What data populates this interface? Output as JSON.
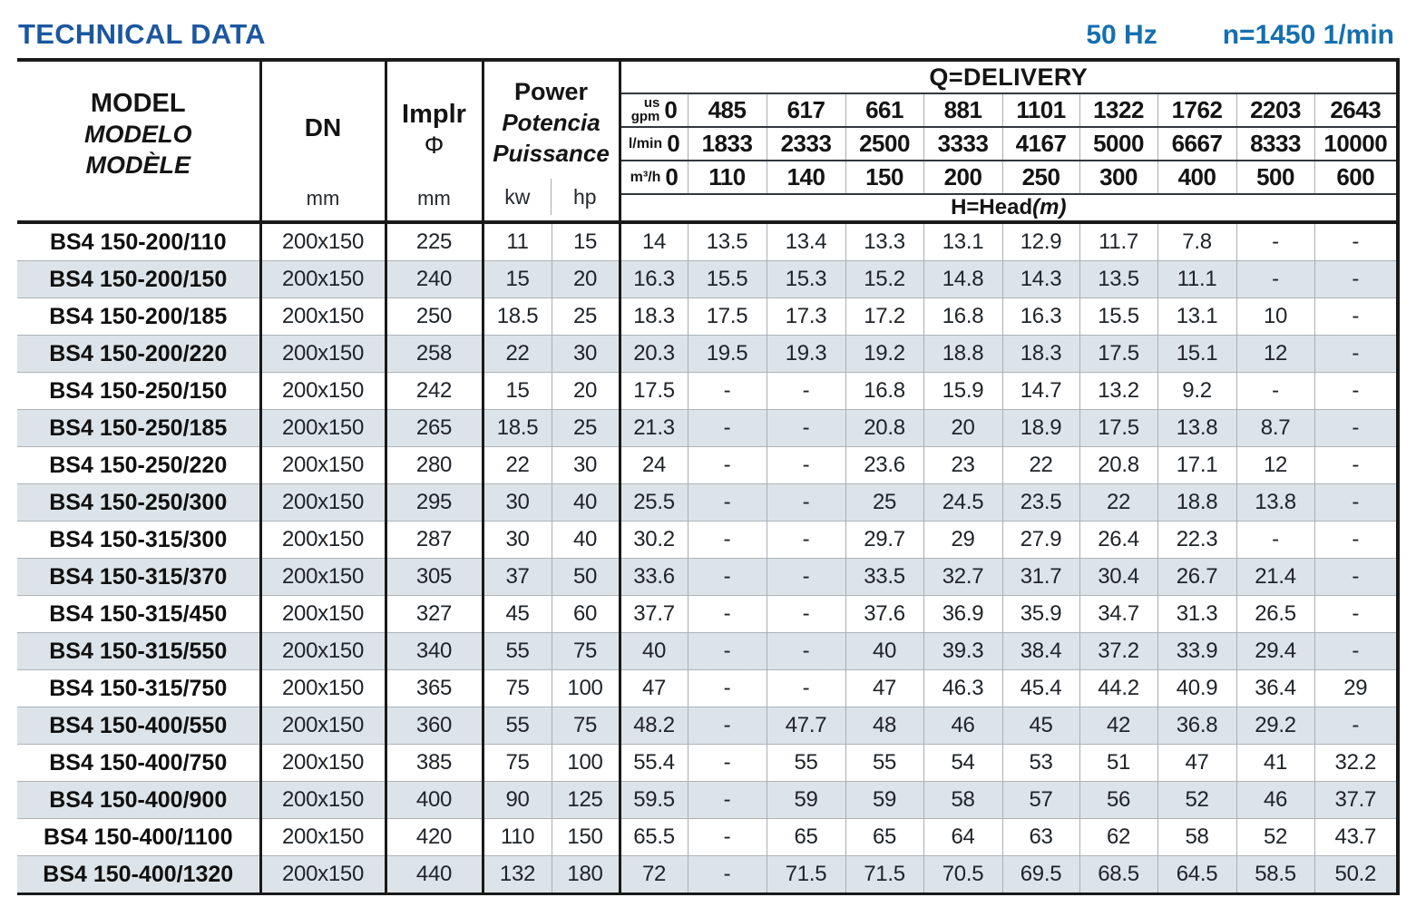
{
  "page": {
    "title": "TECHNICAL DATA",
    "frequency": "50 Hz",
    "speed": "n=1450 1/min"
  },
  "colors": {
    "title_blue": "#1c57a0",
    "spec_blue": "#1470b0",
    "row_stripe": "#dde4e9",
    "border_dark": "#1a1a1a",
    "grid_gray": "#a7aeb5"
  },
  "table": {
    "model_header": {
      "en": "MODEL",
      "es": "MODELO",
      "fr": "MODÈLE"
    },
    "dn_header": {
      "label": "DN",
      "unit": "mm"
    },
    "impeller_header": {
      "label": "Implr",
      "symbol": "Φ",
      "unit": "mm"
    },
    "power_header": {
      "en": "Power",
      "es": "Potencia",
      "fr": "Puissance",
      "unit_kw": "kw",
      "unit_hp": "hp"
    },
    "delivery_header": {
      "title": "Q=DELIVERY",
      "head_label": "H=Head",
      "head_unit": "(m)",
      "unit_rows": [
        {
          "key": "us-gpm",
          "label_lines": [
            "us",
            "gpm"
          ],
          "values": [
            "0",
            "485",
            "617",
            "661",
            "881",
            "1101",
            "1322",
            "1762",
            "2203",
            "2643"
          ]
        },
        {
          "key": "l-min",
          "label_lines": [
            "l/min"
          ],
          "values": [
            "0",
            "1833",
            "2333",
            "2500",
            "3333",
            "4167",
            "5000",
            "6667",
            "8333",
            "10000"
          ]
        },
        {
          "key": "m3-h",
          "label_lines": [
            "m³/h"
          ],
          "values": [
            "0",
            "110",
            "140",
            "150",
            "200",
            "250",
            "300",
            "400",
            "500",
            "600"
          ]
        }
      ]
    },
    "rows": [
      {
        "model": "BS4 150-200/110",
        "dn": "200x150",
        "impeller": "225",
        "kw": "11",
        "hp": "15",
        "head": [
          "14",
          "13.5",
          "13.4",
          "13.3",
          "13.1",
          "12.9",
          "11.7",
          "7.8",
          "-",
          "-"
        ]
      },
      {
        "model": "BS4 150-200/150",
        "dn": "200x150",
        "impeller": "240",
        "kw": "15",
        "hp": "20",
        "head": [
          "16.3",
          "15.5",
          "15.3",
          "15.2",
          "14.8",
          "14.3",
          "13.5",
          "11.1",
          "-",
          "-"
        ]
      },
      {
        "model": "BS4 150-200/185",
        "dn": "200x150",
        "impeller": "250",
        "kw": "18.5",
        "hp": "25",
        "head": [
          "18.3",
          "17.5",
          "17.3",
          "17.2",
          "16.8",
          "16.3",
          "15.5",
          "13.1",
          "10",
          "-"
        ]
      },
      {
        "model": "BS4 150-200/220",
        "dn": "200x150",
        "impeller": "258",
        "kw": "22",
        "hp": "30",
        "head": [
          "20.3",
          "19.5",
          "19.3",
          "19.2",
          "18.8",
          "18.3",
          "17.5",
          "15.1",
          "12",
          "-"
        ]
      },
      {
        "model": "BS4 150-250/150",
        "dn": "200x150",
        "impeller": "242",
        "kw": "15",
        "hp": "20",
        "head": [
          "17.5",
          "-",
          "-",
          "16.8",
          "15.9",
          "14.7",
          "13.2",
          "9.2",
          "-",
          "-"
        ]
      },
      {
        "model": "BS4 150-250/185",
        "dn": "200x150",
        "impeller": "265",
        "kw": "18.5",
        "hp": "25",
        "head": [
          "21.3",
          "-",
          "-",
          "20.8",
          "20",
          "18.9",
          "17.5",
          "13.8",
          "8.7",
          "-"
        ]
      },
      {
        "model": "BS4 150-250/220",
        "dn": "200x150",
        "impeller": "280",
        "kw": "22",
        "hp": "30",
        "head": [
          "24",
          "-",
          "-",
          "23.6",
          "23",
          "22",
          "20.8",
          "17.1",
          "12",
          "-"
        ]
      },
      {
        "model": "BS4 150-250/300",
        "dn": "200x150",
        "impeller": "295",
        "kw": "30",
        "hp": "40",
        "head": [
          "25.5",
          "-",
          "-",
          "25",
          "24.5",
          "23.5",
          "22",
          "18.8",
          "13.8",
          "-"
        ]
      },
      {
        "model": "BS4 150-315/300",
        "dn": "200x150",
        "impeller": "287",
        "kw": "30",
        "hp": "40",
        "head": [
          "30.2",
          "-",
          "-",
          "29.7",
          "29",
          "27.9",
          "26.4",
          "22.3",
          "-",
          "-"
        ]
      },
      {
        "model": "BS4 150-315/370",
        "dn": "200x150",
        "impeller": "305",
        "kw": "37",
        "hp": "50",
        "head": [
          "33.6",
          "-",
          "-",
          "33.5",
          "32.7",
          "31.7",
          "30.4",
          "26.7",
          "21.4",
          "-"
        ]
      },
      {
        "model": "BS4 150-315/450",
        "dn": "200x150",
        "impeller": "327",
        "kw": "45",
        "hp": "60",
        "head": [
          "37.7",
          "-",
          "-",
          "37.6",
          "36.9",
          "35.9",
          "34.7",
          "31.3",
          "26.5",
          "-"
        ]
      },
      {
        "model": "BS4 150-315/550",
        "dn": "200x150",
        "impeller": "340",
        "kw": "55",
        "hp": "75",
        "head": [
          "40",
          "-",
          "-",
          "40",
          "39.3",
          "38.4",
          "37.2",
          "33.9",
          "29.4",
          "-"
        ]
      },
      {
        "model": "BS4 150-315/750",
        "dn": "200x150",
        "impeller": "365",
        "kw": "75",
        "hp": "100",
        "head": [
          "47",
          "-",
          "-",
          "47",
          "46.3",
          "45.4",
          "44.2",
          "40.9",
          "36.4",
          "29"
        ]
      },
      {
        "model": "BS4 150-400/550",
        "dn": "200x150",
        "impeller": "360",
        "kw": "55",
        "hp": "75",
        "head": [
          "48.2",
          "-",
          "47.7",
          "48",
          "46",
          "45",
          "42",
          "36.8",
          "29.2",
          "-"
        ]
      },
      {
        "model": "BS4 150-400/750",
        "dn": "200x150",
        "impeller": "385",
        "kw": "75",
        "hp": "100",
        "head": [
          "55.4",
          "-",
          "55",
          "55",
          "54",
          "53",
          "51",
          "47",
          "41",
          "32.2"
        ]
      },
      {
        "model": "BS4 150-400/900",
        "dn": "200x150",
        "impeller": "400",
        "kw": "90",
        "hp": "125",
        "head": [
          "59.5",
          "-",
          "59",
          "59",
          "58",
          "57",
          "56",
          "52",
          "46",
          "37.7"
        ]
      },
      {
        "model": "BS4 150-400/1100",
        "dn": "200x150",
        "impeller": "420",
        "kw": "110",
        "hp": "150",
        "head": [
          "65.5",
          "-",
          "65",
          "65",
          "64",
          "63",
          "62",
          "58",
          "52",
          "43.7"
        ]
      },
      {
        "model": "BS4 150-400/1320",
        "dn": "200x150",
        "impeller": "440",
        "kw": "132",
        "hp": "180",
        "head": [
          "72",
          "-",
          "71.5",
          "71.5",
          "70.5",
          "69.5",
          "68.5",
          "64.5",
          "58.5",
          "50.2"
        ]
      }
    ]
  }
}
